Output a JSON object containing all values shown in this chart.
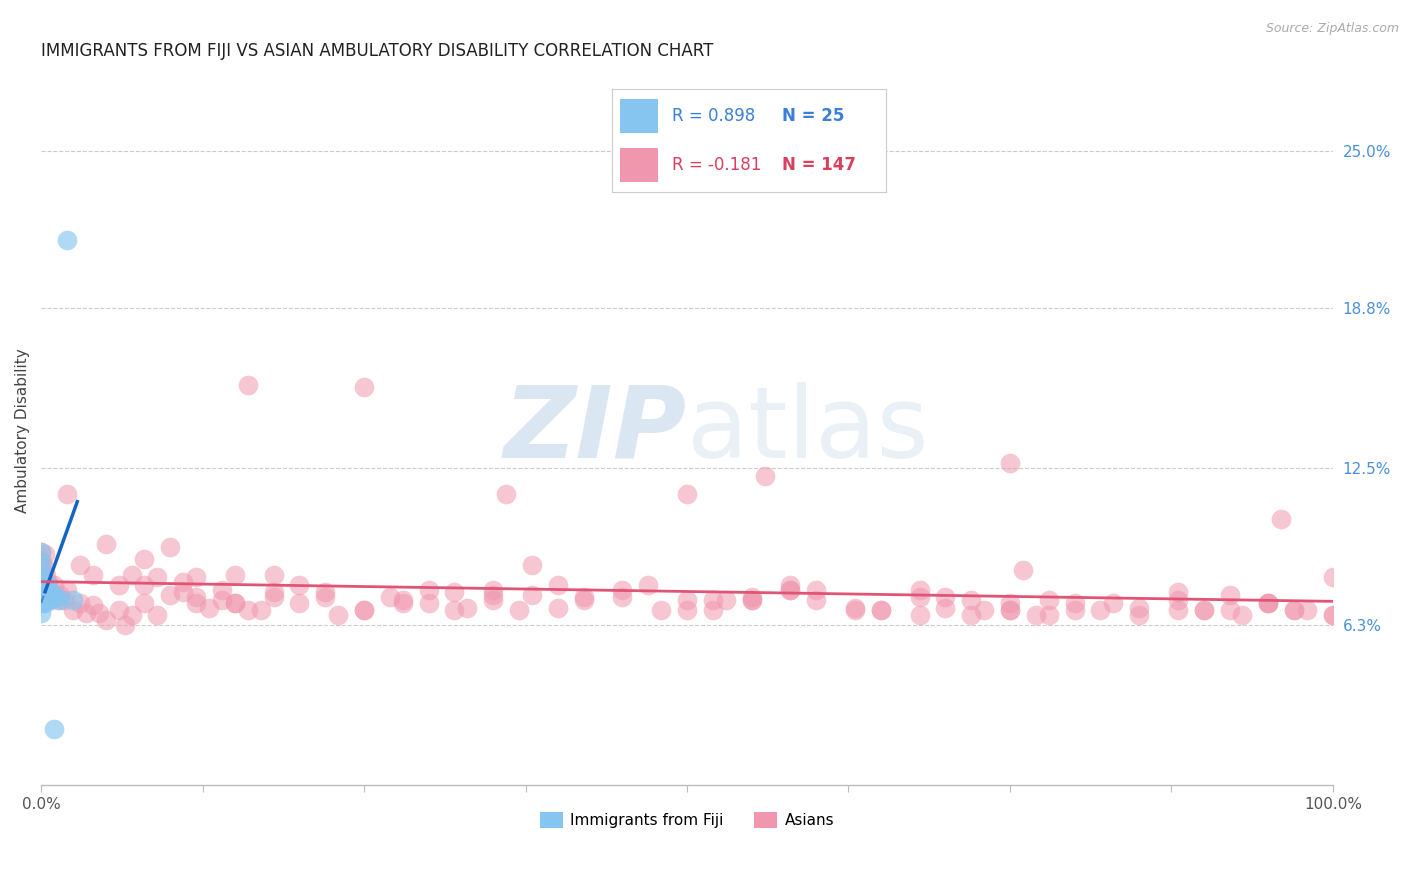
{
  "title": "IMMIGRANTS FROM FIJI VS ASIAN AMBULATORY DISABILITY CORRELATION CHART",
  "source": "Source: ZipAtlas.com",
  "ylabel": "Ambulatory Disability",
  "xlim": [
    0.0,
    1.0
  ],
  "ylim": [
    0.0,
    0.28
  ],
  "y_tick_labels_right": [
    "6.3%",
    "12.5%",
    "18.8%",
    "25.0%"
  ],
  "y_tick_values_right": [
    0.063,
    0.125,
    0.188,
    0.25
  ],
  "watermark_zip": "ZIP",
  "watermark_atlas": "atlas",
  "legend_fiji_R": "0.898",
  "legend_fiji_N": "25",
  "legend_asian_R": "-0.181",
  "legend_asian_N": "147",
  "fiji_color": "#85c5f0",
  "asian_color": "#f097ae",
  "fiji_line_color": "#1565c0",
  "asian_line_color": "#e05575",
  "fiji_scatter_x": [
    0.0,
    0.0,
    0.0,
    0.0,
    0.0,
    0.0,
    0.001,
    0.001,
    0.001,
    0.002,
    0.002,
    0.003,
    0.003,
    0.004,
    0.005,
    0.005,
    0.006,
    0.007,
    0.008,
    0.01,
    0.012,
    0.015,
    0.02,
    0.025,
    0.01
  ],
  "fiji_scatter_y": [
    0.075,
    0.082,
    0.088,
    0.092,
    0.073,
    0.068,
    0.078,
    0.072,
    0.085,
    0.074,
    0.08,
    0.072,
    0.076,
    0.073,
    0.079,
    0.074,
    0.075,
    0.073,
    0.076,
    0.074,
    0.074,
    0.073,
    0.215,
    0.073,
    0.022
  ],
  "asian_scatter_x": [
    0.0,
    0.0,
    0.0,
    0.0,
    0.001,
    0.001,
    0.002,
    0.003,
    0.004,
    0.005,
    0.007,
    0.01,
    0.013,
    0.015,
    0.018,
    0.02,
    0.025,
    0.03,
    0.035,
    0.04,
    0.045,
    0.05,
    0.06,
    0.065,
    0.07,
    0.08,
    0.09,
    0.1,
    0.11,
    0.12,
    0.13,
    0.14,
    0.15,
    0.16,
    0.18,
    0.2,
    0.22,
    0.25,
    0.27,
    0.3,
    0.33,
    0.35,
    0.38,
    0.4,
    0.42,
    0.45,
    0.5,
    0.52,
    0.55,
    0.58,
    0.6,
    0.63,
    0.65,
    0.68,
    0.7,
    0.72,
    0.75,
    0.77,
    0.8,
    0.82,
    0.85,
    0.88,
    0.9,
    0.92,
    0.95,
    0.97,
    1.0,
    0.02,
    0.04,
    0.06,
    0.08,
    0.1,
    0.12,
    0.15,
    0.18,
    0.22,
    0.25,
    0.3,
    0.35,
    0.4,
    0.45,
    0.5,
    0.55,
    0.6,
    0.65,
    0.7,
    0.75,
    0.8,
    0.85,
    0.9,
    0.95,
    1.0,
    0.03,
    0.07,
    0.09,
    0.11,
    0.14,
    0.17,
    0.2,
    0.23,
    0.28,
    0.32,
    0.37,
    0.42,
    0.47,
    0.53,
    0.58,
    0.63,
    0.68,
    0.73,
    0.78,
    0.83,
    0.88,
    0.93,
    0.97,
    0.16,
    0.36,
    0.56,
    0.76,
    0.96,
    0.08,
    0.28,
    0.48,
    0.68,
    0.88,
    0.18,
    0.38,
    0.58,
    0.78,
    0.98,
    0.12,
    0.32,
    0.52,
    0.72,
    0.92,
    0.25,
    0.5,
    0.75,
    1.0,
    0.05,
    0.15,
    0.35,
    0.55,
    0.75,
    0.95
  ],
  "asian_scatter_y": [
    0.092,
    0.086,
    0.079,
    0.073,
    0.088,
    0.082,
    0.086,
    0.091,
    0.083,
    0.08,
    0.077,
    0.079,
    0.073,
    0.075,
    0.073,
    0.077,
    0.069,
    0.072,
    0.068,
    0.071,
    0.068,
    0.065,
    0.069,
    0.063,
    0.067,
    0.072,
    0.067,
    0.075,
    0.08,
    0.072,
    0.07,
    0.077,
    0.072,
    0.069,
    0.074,
    0.079,
    0.076,
    0.069,
    0.074,
    0.077,
    0.07,
    0.073,
    0.075,
    0.07,
    0.073,
    0.077,
    0.073,
    0.069,
    0.074,
    0.077,
    0.073,
    0.07,
    0.069,
    0.067,
    0.07,
    0.073,
    0.069,
    0.067,
    0.072,
    0.069,
    0.07,
    0.073,
    0.069,
    0.075,
    0.072,
    0.069,
    0.067,
    0.115,
    0.083,
    0.079,
    0.089,
    0.094,
    0.082,
    0.072,
    0.076,
    0.074,
    0.069,
    0.072,
    0.077,
    0.079,
    0.074,
    0.069,
    0.073,
    0.077,
    0.069,
    0.074,
    0.072,
    0.069,
    0.067,
    0.069,
    0.072,
    0.067,
    0.087,
    0.083,
    0.082,
    0.076,
    0.073,
    0.069,
    0.072,
    0.067,
    0.072,
    0.076,
    0.069,
    0.074,
    0.079,
    0.073,
    0.077,
    0.069,
    0.074,
    0.069,
    0.067,
    0.072,
    0.069,
    0.067,
    0.069,
    0.158,
    0.115,
    0.122,
    0.085,
    0.105,
    0.079,
    0.073,
    0.069,
    0.077,
    0.076,
    0.083,
    0.087,
    0.079,
    0.073,
    0.069,
    0.074,
    0.069,
    0.073,
    0.067,
    0.069,
    0.157,
    0.115,
    0.127,
    0.082,
    0.095,
    0.083,
    0.075,
    0.073,
    0.069,
    0.072
  ],
  "background_color": "#ffffff",
  "grid_color": "#cccccc",
  "title_color": "#222222",
  "source_color": "#aaaaaa"
}
